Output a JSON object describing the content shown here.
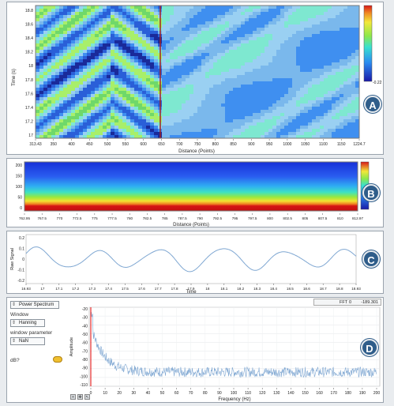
{
  "badges": {
    "a": "A",
    "b": "B",
    "c": "C",
    "d": "D"
  },
  "panel_a": {
    "ylabel": "Time (s)",
    "xlabel": "Distance (Points)",
    "yticks": [
      "18.8",
      "18.6",
      "18.4",
      "18.2",
      "18",
      "17.8",
      "17.6",
      "17.4",
      "17.2",
      "17"
    ],
    "xticks": [
      "313.43",
      "350",
      "400",
      "450",
      "500",
      "550",
      "600",
      "650",
      "700",
      "750",
      "800",
      "850",
      "900",
      "950",
      "1000",
      "1050",
      "1100",
      "1150",
      "1224.7"
    ],
    "colorbar_min": "-0.22"
  },
  "panel_b": {
    "xlabel": "Distance (Points)",
    "yticks": [
      "200",
      "150",
      "100",
      "50",
      "0"
    ],
    "xticks": [
      "762.95",
      "767.5",
      "770",
      "772.5",
      "775",
      "777.5",
      "780",
      "782.5",
      "785",
      "787.5",
      "790",
      "792.5",
      "795",
      "797.5",
      "800",
      "802.5",
      "805",
      "807.5",
      "810",
      "812.97"
    ]
  },
  "panel_c": {
    "ylabel": "Raw Signal",
    "xlabel": "Time",
    "yticks": [
      "0.2",
      "0.1",
      "0",
      "-0.1",
      "-0.2"
    ],
    "xticks": [
      "16.93",
      "17",
      "17.1",
      "17.2",
      "17.3",
      "17.4",
      "17.5",
      "17.6",
      "17.7",
      "17.8",
      "17.9",
      "18",
      "18.1",
      "18.2",
      "18.3",
      "18.4",
      "18.5",
      "18.6",
      "18.7",
      "18.8",
      "18.93"
    ]
  },
  "panel_d": {
    "mode_select": "Power Spectrum",
    "window_label": "Window",
    "window_select": "Hanning",
    "window_param_label": "window parameter",
    "window_param_value": "NaN",
    "db_label": "dB?",
    "fft_label": "FFT",
    "fft_value": "0",
    "fft_readout": "-189.301",
    "ylabel": "Amplitude",
    "xlabel": "Frequency (Hz)",
    "yticks": [
      "-20",
      "-30",
      "-40",
      "-50",
      "-60",
      "-70",
      "-80",
      "-90",
      "-100",
      "-110"
    ],
    "xticks": [
      "0",
      "10",
      "20",
      "30",
      "40",
      "50",
      "60",
      "70",
      "80",
      "90",
      "100",
      "110",
      "120",
      "130",
      "140",
      "150",
      "160",
      "170",
      "180",
      "190",
      "200"
    ]
  },
  "colors": {
    "accent": "#2f5d8a",
    "signal": "#7fa7d2",
    "marker": "#e00000"
  },
  "icons": [
    "zoom-icon",
    "pan-icon",
    "cursor-icon",
    "db-toggle-icon"
  ]
}
